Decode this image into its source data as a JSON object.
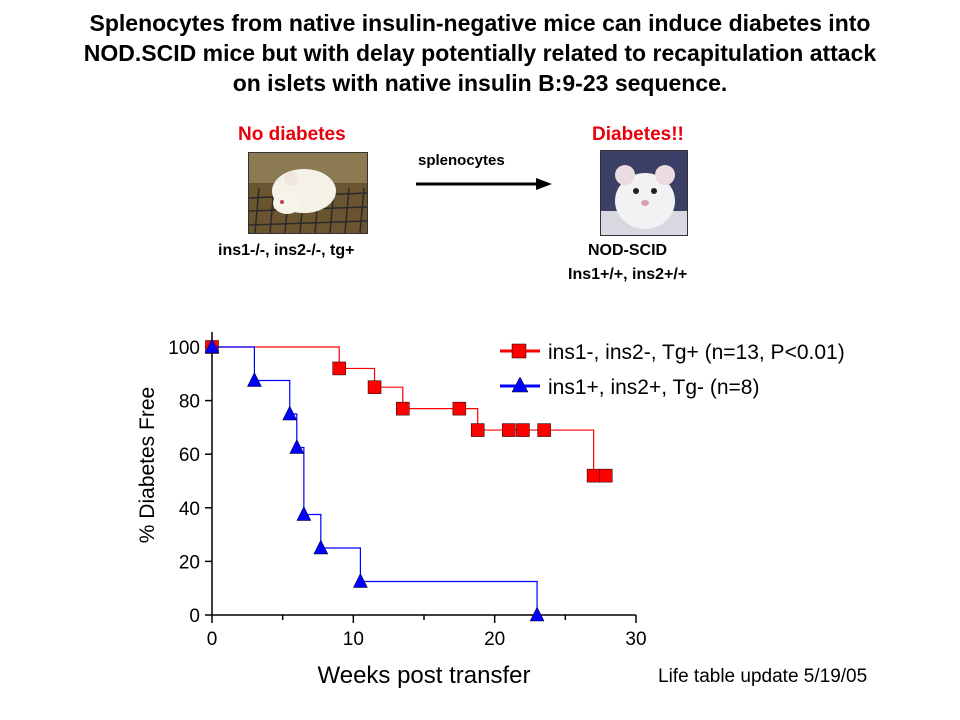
{
  "title_lines": [
    "Splenocytes from native insulin-negative mice can induce diabetes into",
    "NOD.SCID mice but with delay potentially related to recapitulation attack",
    "on islets with native insulin B:9-23 sequence."
  ],
  "schematic": {
    "left_status": "No diabetes",
    "left_genotype": "ins1-/-, ins2-/-, tg+",
    "arrow_label": "splenocytes",
    "right_status": "Diabetes!!",
    "right_strain": "NOD-SCID",
    "right_genotype": "Ins1+/+, ins2+/+"
  },
  "footnote": "Life table update 5/19/05",
  "colors": {
    "red_series": "#ff0000",
    "blue_series": "#0000ff",
    "status_text": "#e8000b"
  },
  "chart_data": {
    "type": "line",
    "step": true,
    "xlabel": "Weeks post transfer",
    "ylabel": "% Diabetes Free",
    "xlim": [
      0,
      30
    ],
    "ylim": [
      0,
      100
    ],
    "xticks": [
      "0",
      "10",
      "20",
      "30"
    ],
    "yticks": [
      "0",
      "20",
      "40",
      "60",
      "80",
      "100"
    ],
    "legend_position": "top-right",
    "series": [
      {
        "name": "ins1-, ins2-, Tg+ (n=13, P<0.01)",
        "marker": "square",
        "color": "#ff0000",
        "x": [
          0,
          9,
          11.5,
          13.5,
          17.5,
          18.8,
          21,
          22,
          23.5,
          27
        ],
        "y": [
          100,
          92,
          85,
          77,
          77,
          69,
          69,
          69,
          69,
          52
        ]
      },
      {
        "name": "ins1+, ins2+, Tg- (n=8)",
        "marker": "triangle",
        "color": "#0000ff",
        "x": [
          0,
          3,
          5.5,
          6,
          6.5,
          7.7,
          10.5,
          23
        ],
        "y": [
          100,
          87.5,
          75,
          62.5,
          37.5,
          25,
          12.5,
          0
        ]
      }
    ]
  }
}
